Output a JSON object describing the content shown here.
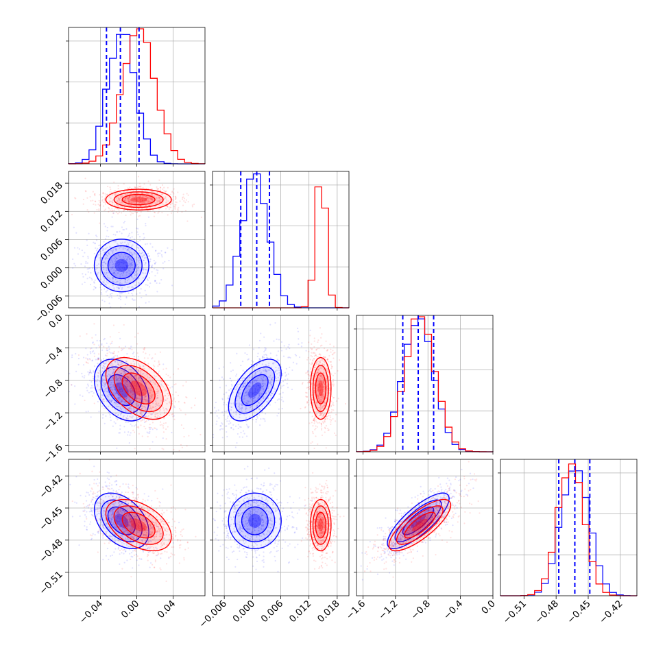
{
  "chart_data": {
    "type": "corner",
    "title": "",
    "grid": true,
    "colors": {
      "series_a": "#0000ff",
      "series_b": "#ff0000"
    },
    "parameters": [
      {
        "index": 0,
        "range": [
          -0.075,
          0.075
        ],
        "ticks": [
          -0.04,
          0.0,
          0.04
        ],
        "tick_labels": [
          "−0.04",
          "0.00",
          "0.04"
        ]
      },
      {
        "index": 1,
        "range": [
          -0.0085,
          0.0205
        ],
        "ticks": [
          -0.006,
          0.0,
          0.006,
          0.012,
          0.018
        ],
        "tick_labels": [
          "−0.006",
          "0.000",
          "0.006",
          "0.012",
          "0.018"
        ]
      },
      {
        "index": 2,
        "range": [
          -1.68,
          0.0
        ],
        "ticks": [
          -1.6,
          -1.2,
          -0.8,
          -0.4,
          0.0
        ],
        "tick_labels": [
          "−1.6",
          "−1.2",
          "−0.8",
          "−0.4",
          "0.0"
        ]
      },
      {
        "index": 3,
        "range": [
          -0.532,
          -0.4045
        ],
        "ticks": [
          -0.51,
          -0.48,
          -0.45,
          -0.42
        ],
        "tick_labels": [
          "−0.51",
          "−0.48",
          "−0.45",
          "−0.42"
        ]
      }
    ],
    "series": [
      {
        "color": "#0000ff",
        "mean": [
          -0.0167,
          0.0005,
          -0.92,
          -0.462
        ],
        "std": [
          0.015,
          0.0028,
          0.19,
          0.013
        ],
        "corr": [
          [
            1.0,
            0.0,
            -0.35,
            -0.4
          ],
          [
            0.0,
            1.0,
            0.55,
            0.0
          ],
          [
            -0.35,
            0.55,
            1.0,
            0.8
          ],
          [
            -0.4,
            0.0,
            0.8,
            1.0
          ]
        ],
        "quantiles": [
          [
            -0.0333,
            -0.018,
            0.0025
          ],
          [
            -0.0025,
            0.0009,
            0.0036
          ],
          [
            -1.11,
            -0.92,
            -0.73
          ],
          [
            -0.4775,
            -0.4625,
            -0.4485
          ]
        ]
      },
      {
        "color": "#ff0000",
        "mean": [
          0.002,
          0.0145,
          -0.9,
          -0.466
        ],
        "std": [
          0.018,
          0.0011,
          0.19,
          0.012
        ],
        "corr": [
          [
            1.0,
            0.0,
            -0.45,
            -0.45
          ],
          [
            0.0,
            1.0,
            0.0,
            0.0
          ],
          [
            -0.45,
            0.0,
            1.0,
            0.78
          ],
          [
            -0.45,
            0.0,
            0.78,
            1.0
          ]
        ]
      }
    ]
  }
}
